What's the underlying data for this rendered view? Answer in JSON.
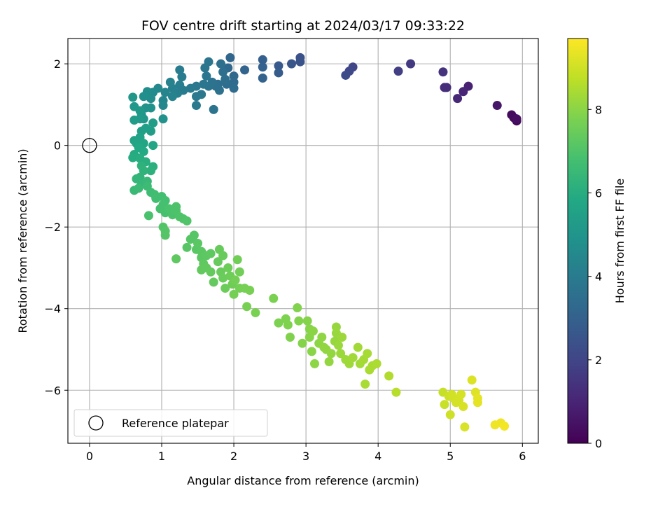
{
  "chart_data": {
    "type": "scatter",
    "title": "FOV centre drift starting at 2024/03/17 09:33:22",
    "xlabel": "Angular distance from reference (arcmin)",
    "ylabel": "Rotation from reference (arcmin)",
    "xlim": [
      -0.3,
      6.22
    ],
    "ylim": [
      -7.3,
      2.62
    ],
    "xticks": [
      0,
      1,
      2,
      3,
      4,
      5,
      6
    ],
    "xtick_labels": [
      "0",
      "1",
      "2",
      "3",
      "4",
      "5",
      "6"
    ],
    "yticks": [
      2,
      0,
      -2,
      -4,
      -6
    ],
    "ytick_labels": [
      "2",
      "0",
      "−2",
      "−4",
      "−6"
    ],
    "grid": true,
    "legend": {
      "location": "lower left",
      "entries": [
        "Reference platepar"
      ]
    },
    "colorbar": {
      "label": "Hours from first FF file",
      "range": [
        0,
        9.7
      ],
      "ticks": [
        0,
        2,
        4,
        6,
        8
      ],
      "tick_labels": [
        "0",
        "2",
        "4",
        "6",
        "8"
      ],
      "colormap": "viridis"
    },
    "reference_point": {
      "x": 0,
      "y": 0,
      "label": "Reference platepar"
    },
    "points": [
      [
        5.92,
        0.6,
        0.2
      ],
      [
        5.88,
        0.68,
        0.25
      ],
      [
        5.85,
        0.75,
        0.3
      ],
      [
        5.92,
        0.65,
        0.35
      ],
      [
        5.65,
        0.98,
        0.6
      ],
      [
        5.25,
        1.45,
        0.9
      ],
      [
        5.18,
        1.32,
        1.0
      ],
      [
        5.1,
        1.15,
        1.1
      ],
      [
        4.95,
        1.42,
        1.2
      ],
      [
        4.9,
        1.8,
        1.4
      ],
      [
        4.92,
        1.42,
        1.25
      ],
      [
        4.45,
        2.0,
        1.6
      ],
      [
        4.28,
        1.82,
        1.8
      ],
      [
        3.65,
        1.92,
        2.0
      ],
      [
        3.6,
        1.82,
        2.1
      ],
      [
        3.55,
        1.72,
        2.2
      ],
      [
        2.92,
        2.15,
        2.4
      ],
      [
        2.92,
        2.05,
        2.5
      ],
      [
        2.8,
        2.0,
        2.6
      ],
      [
        2.62,
        1.95,
        2.7
      ],
      [
        2.62,
        1.78,
        2.8
      ],
      [
        2.4,
        2.1,
        2.9
      ],
      [
        2.4,
        1.92,
        3.0
      ],
      [
        2.4,
        1.65,
        3.05
      ],
      [
        2.15,
        1.85,
        3.1
      ],
      [
        1.95,
        2.15,
        3.2
      ],
      [
        1.92,
        1.9,
        3.25
      ],
      [
        2.0,
        1.7,
        3.3
      ],
      [
        2.0,
        1.55,
        3.35
      ],
      [
        2.0,
        1.4,
        3.4
      ],
      [
        1.9,
        1.5,
        3.45
      ],
      [
        1.85,
        1.8,
        3.5
      ],
      [
        1.82,
        2.0,
        3.52
      ],
      [
        1.88,
        1.62,
        3.55
      ],
      [
        1.78,
        1.5,
        3.58
      ],
      [
        1.8,
        1.35,
        3.6
      ],
      [
        1.75,
        1.45,
        3.62
      ],
      [
        1.7,
        1.55,
        3.65
      ],
      [
        1.72,
        0.88,
        3.68
      ],
      [
        1.65,
        1.45,
        3.7
      ],
      [
        1.65,
        2.05,
        3.75
      ],
      [
        1.6,
        1.9,
        3.78
      ],
      [
        1.62,
        1.7,
        3.8
      ],
      [
        1.58,
        1.5,
        3.82
      ],
      [
        1.55,
        1.25,
        3.85
      ],
      [
        1.48,
        1.45,
        3.88
      ],
      [
        1.48,
        1.2,
        3.9
      ],
      [
        1.48,
        0.98,
        3.92
      ],
      [
        1.4,
        1.4,
        3.95
      ],
      [
        1.3,
        1.35,
        3.98
      ],
      [
        1.25,
        1.85,
        4.0
      ],
      [
        1.28,
        1.68,
        4.05
      ],
      [
        1.25,
        1.48,
        4.1
      ],
      [
        1.22,
        1.28,
        4.15
      ],
      [
        1.15,
        1.4,
        4.2
      ],
      [
        1.12,
        1.55,
        4.25
      ],
      [
        1.15,
        1.2,
        4.3
      ],
      [
        1.05,
        1.3,
        4.35
      ],
      [
        1.02,
        1.1,
        4.4
      ],
      [
        1.02,
        0.98,
        4.45
      ],
      [
        0.95,
        1.4,
        4.5
      ],
      [
        0.88,
        1.3,
        4.6
      ],
      [
        0.85,
        1.15,
        4.7
      ],
      [
        0.8,
        1.32,
        4.75
      ],
      [
        0.75,
        1.2,
        4.8
      ],
      [
        0.85,
        0.92,
        4.85
      ],
      [
        1.02,
        0.65,
        4.9
      ],
      [
        0.78,
        0.92,
        4.95
      ],
      [
        0.72,
        0.75,
        5.0
      ],
      [
        0.75,
        0.65,
        5.05
      ],
      [
        0.6,
        1.18,
        5.1
      ],
      [
        0.62,
        0.95,
        5.15
      ],
      [
        0.7,
        0.85,
        5.2
      ],
      [
        0.7,
        0.65,
        5.25
      ],
      [
        0.62,
        0.62,
        5.3
      ],
      [
        0.88,
        0.55,
        5.35
      ],
      [
        0.85,
        0.35,
        5.4
      ],
      [
        0.78,
        0.42,
        5.45
      ],
      [
        0.72,
        0.35,
        5.5
      ],
      [
        0.7,
        0.2,
        5.55
      ],
      [
        0.62,
        0.12,
        5.6
      ],
      [
        0.65,
        0.05,
        5.65
      ],
      [
        0.75,
        0.05,
        5.7
      ],
      [
        0.88,
        0.0,
        5.75
      ],
      [
        0.68,
        -0.05,
        5.8
      ],
      [
        0.75,
        -0.15,
        5.85
      ],
      [
        0.62,
        -0.22,
        5.9
      ],
      [
        0.6,
        -0.3,
        5.95
      ],
      [
        0.7,
        -0.32,
        6.0
      ],
      [
        0.78,
        -0.4,
        6.05
      ],
      [
        0.88,
        -0.52,
        6.1
      ],
      [
        0.85,
        -0.62,
        6.15
      ],
      [
        0.72,
        -0.5,
        6.2
      ],
      [
        0.75,
        -0.62,
        6.25
      ],
      [
        0.7,
        -0.78,
        6.3
      ],
      [
        0.65,
        -0.82,
        6.35
      ],
      [
        0.72,
        -0.95,
        6.4
      ],
      [
        0.8,
        -0.88,
        6.45
      ],
      [
        0.62,
        -1.1,
        6.5
      ],
      [
        0.68,
        -1.05,
        6.55
      ],
      [
        0.8,
        -1.0,
        6.6
      ],
      [
        0.85,
        -1.15,
        6.65
      ],
      [
        0.9,
        -1.2,
        6.7
      ],
      [
        0.92,
        -1.3,
        6.72
      ],
      [
        1.0,
        -1.25,
        6.75
      ],
      [
        1.05,
        -1.35,
        6.78
      ],
      [
        1.02,
        -1.45,
        6.8
      ],
      [
        0.98,
        -1.55,
        6.82
      ],
      [
        1.05,
        -1.65,
        6.85
      ],
      [
        0.82,
        -1.72,
        6.88
      ],
      [
        1.1,
        -1.55,
        6.9
      ],
      [
        1.15,
        -1.7,
        6.92
      ],
      [
        1.2,
        -1.6,
        6.94
      ],
      [
        1.2,
        -1.5,
        6.96
      ],
      [
        1.25,
        -1.75,
        6.98
      ],
      [
        1.3,
        -1.8,
        7.0
      ],
      [
        1.35,
        -1.85,
        7.02
      ],
      [
        1.02,
        -2.0,
        7.04
      ],
      [
        1.05,
        -2.1,
        7.06
      ],
      [
        1.05,
        -2.2,
        7.08
      ],
      [
        1.45,
        -2.2,
        7.1
      ],
      [
        1.4,
        -2.3,
        7.12
      ],
      [
        1.35,
        -2.5,
        7.14
      ],
      [
        1.48,
        -2.55,
        7.16
      ],
      [
        1.5,
        -2.4,
        7.18
      ],
      [
        1.55,
        -2.6,
        7.2
      ],
      [
        1.55,
        -2.75,
        7.22
      ],
      [
        1.62,
        -2.7,
        7.24
      ],
      [
        1.68,
        -2.65,
        7.26
      ],
      [
        1.2,
        -2.78,
        7.28
      ],
      [
        1.58,
        -2.9,
        7.3
      ],
      [
        1.62,
        -3.0,
        7.32
      ],
      [
        1.55,
        -3.05,
        7.34
      ],
      [
        1.68,
        -3.1,
        7.36
      ],
      [
        1.72,
        -3.35,
        7.38
      ],
      [
        1.78,
        -2.85,
        7.4
      ],
      [
        1.8,
        -2.55,
        7.42
      ],
      [
        1.85,
        -2.7,
        7.44
      ],
      [
        1.82,
        -3.1,
        7.46
      ],
      [
        1.85,
        -3.25,
        7.48
      ],
      [
        1.88,
        -3.5,
        7.5
      ],
      [
        1.92,
        -3.0,
        7.52
      ],
      [
        1.95,
        -3.2,
        7.54
      ],
      [
        1.98,
        -3.4,
        7.56
      ],
      [
        2.05,
        -2.8,
        7.58
      ],
      [
        2.08,
        -3.1,
        7.6
      ],
      [
        2.02,
        -3.3,
        7.62
      ],
      [
        2.08,
        -3.5,
        7.64
      ],
      [
        2.0,
        -3.65,
        7.66
      ],
      [
        2.15,
        -3.5,
        7.68
      ],
      [
        2.22,
        -3.55,
        7.7
      ],
      [
        2.18,
        -3.95,
        7.72
      ],
      [
        2.3,
        -4.1,
        7.74
      ],
      [
        2.55,
        -3.75,
        7.76
      ],
      [
        2.62,
        -4.35,
        7.78
      ],
      [
        2.72,
        -4.25,
        7.8
      ],
      [
        2.75,
        -4.4,
        7.82
      ],
      [
        2.78,
        -4.7,
        7.84
      ],
      [
        2.88,
        -3.98,
        7.86
      ],
      [
        2.9,
        -4.3,
        7.88
      ],
      [
        2.95,
        -4.85,
        7.9
      ],
      [
        3.02,
        -4.3,
        7.92
      ],
      [
        3.05,
        -4.5,
        7.94
      ],
      [
        3.05,
        -4.7,
        7.96
      ],
      [
        3.08,
        -5.05,
        7.98
      ],
      [
        3.1,
        -4.55,
        8.0
      ],
      [
        3.12,
        -5.35,
        8.02
      ],
      [
        3.18,
        -4.85,
        8.04
      ],
      [
        3.22,
        -4.7,
        8.06
      ],
      [
        3.25,
        -4.95,
        8.08
      ],
      [
        3.28,
        -5.0,
        8.1
      ],
      [
        3.32,
        -5.3,
        8.12
      ],
      [
        3.35,
        -5.1,
        8.14
      ],
      [
        3.4,
        -4.8,
        8.16
      ],
      [
        3.42,
        -4.45,
        8.18
      ],
      [
        3.42,
        -4.6,
        8.2
      ],
      [
        3.45,
        -4.9,
        8.22
      ],
      [
        3.48,
        -5.1,
        8.24
      ],
      [
        3.5,
        -4.7,
        8.26
      ],
      [
        3.55,
        -5.25,
        8.28
      ],
      [
        3.6,
        -5.35,
        8.3
      ],
      [
        3.65,
        -5.2,
        8.32
      ],
      [
        3.72,
        -4.95,
        8.34
      ],
      [
        3.75,
        -5.35,
        8.36
      ],
      [
        3.8,
        -5.25,
        8.38
      ],
      [
        3.85,
        -5.1,
        8.4
      ],
      [
        3.82,
        -5.85,
        8.42
      ],
      [
        3.88,
        -5.5,
        8.44
      ],
      [
        3.92,
        -5.4,
        8.46
      ],
      [
        3.98,
        -5.35,
        8.48
      ],
      [
        4.15,
        -5.65,
        8.55
      ],
      [
        4.25,
        -6.05,
        8.65
      ],
      [
        4.9,
        -6.05,
        8.85
      ],
      [
        4.92,
        -6.35,
        8.9
      ],
      [
        4.98,
        -6.15,
        8.95
      ],
      [
        5.0,
        -6.6,
        9.0
      ],
      [
        5.02,
        -6.1,
        9.02
      ],
      [
        5.05,
        -6.2,
        9.04
      ],
      [
        5.08,
        -6.3,
        9.06
      ],
      [
        5.12,
        -6.25,
        9.08
      ],
      [
        5.15,
        -6.1,
        9.1
      ],
      [
        5.18,
        -6.4,
        9.12
      ],
      [
        5.2,
        -6.9,
        9.14
      ],
      [
        5.3,
        -5.75,
        9.2
      ],
      [
        5.35,
        -6.05,
        9.25
      ],
      [
        5.38,
        -6.2,
        9.3
      ],
      [
        5.38,
        -6.3,
        9.32
      ],
      [
        5.62,
        -6.85,
        9.45
      ],
      [
        5.7,
        -6.8,
        9.5
      ],
      [
        5.75,
        -6.88,
        9.55
      ]
    ]
  }
}
